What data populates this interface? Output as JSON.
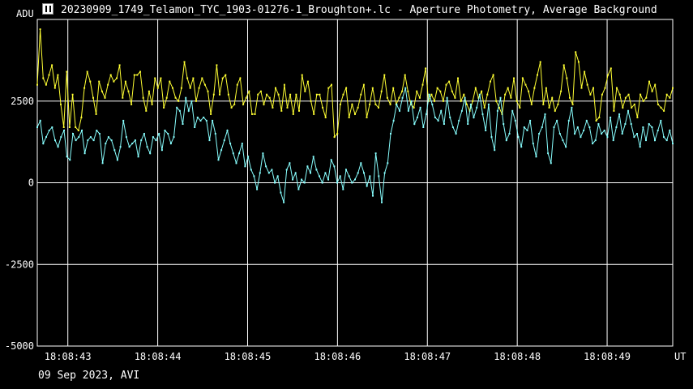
{
  "window": {
    "title": "20230909_1749_Telamon_TYC_1903-01276-1_Broughton+.lc - Aperture Photometry, Average Background",
    "icon": "app-icon"
  },
  "footer": {
    "date_label": "09 Sep 2023, AVI"
  },
  "colors": {
    "background": "#000000",
    "grid": "#ffffff",
    "series1": "#ffff33",
    "series2": "#88ffff"
  },
  "chart_data": {
    "type": "line",
    "title": "20230909_1749_Telamon_TYC_1903-01276-1_Broughton+.lc - Aperture Photometry, Average Background",
    "ylabel": "ADU",
    "xlabel": "UT",
    "ylim": [
      -5000,
      5000
    ],
    "y_ticks": [
      2500,
      0,
      -2500,
      -5000
    ],
    "y_tick_labels": [
      "2500",
      "0",
      "-2500",
      "-5000"
    ],
    "x_ticks": [
      "18:08:43",
      "18:08:44",
      "18:08:45",
      "18:08:46",
      "18:08:47",
      "18:08:48",
      "18:08:49"
    ],
    "x_range_seconds": [
      42.66,
      49.73
    ],
    "grid": true,
    "series": [
      {
        "color": "#ffff33",
        "values": [
          3000,
          4700,
          3200,
          3000,
          3300,
          3600,
          2900,
          3300,
          2400,
          1700,
          3400,
          1700,
          2700,
          1700,
          1600,
          2000,
          2900,
          3400,
          3100,
          2600,
          2100,
          3100,
          2800,
          2600,
          3000,
          3300,
          3100,
          3200,
          3600,
          2600,
          3100,
          2800,
          2400,
          3300,
          3300,
          3400,
          2600,
          2200,
          2800,
          2400,
          3200,
          2900,
          3200,
          2300,
          2600,
          3100,
          2900,
          2600,
          2500,
          2900,
          3700,
          3200,
          2900,
          3200,
          2500,
          2900,
          3200,
          3000,
          2800,
          2100,
          2700,
          3600,
          2700,
          3200,
          3300,
          2700,
          2300,
          2400,
          3000,
          3200,
          2400,
          2600,
          2800,
          2100,
          2100,
          2700,
          2800,
          2400,
          2700,
          2600,
          2300,
          2900,
          2700,
          2200,
          3000,
          2300,
          2700,
          2100,
          2700,
          2200,
          3300,
          2800,
          3100,
          2500,
          2100,
          2700,
          2700,
          2300,
          2000,
          2900,
          3000,
          1400,
          1500,
          2400,
          2700,
          2900,
          2000,
          2400,
          2100,
          2300,
          2700,
          3000,
          2000,
          2400,
          2900,
          2400,
          2300,
          2800,
          3300,
          2600,
          2400,
          2900,
          2400,
          2600,
          2800,
          3300,
          2800,
          2400,
          2300,
          2800,
          2600,
          3000,
          3500,
          2500,
          2700,
          2500,
          2900,
          2800,
          2500,
          3000,
          3100,
          2800,
          2600,
          3200,
          2500,
          2700,
          2400,
          2200,
          2500,
          2900,
          2600,
          2800,
          2300,
          2700,
          3100,
          3300,
          2500,
          2300,
          2100,
          2700,
          2900,
          2600,
          3200,
          2500,
          2300,
          3200,
          3000,
          2800,
          2400,
          2900,
          3300,
          3700,
          2400,
          2900,
          2300,
          2600,
          2200,
          2400,
          2800,
          3600,
          3200,
          2600,
          2400,
          4000,
          3700,
          2900,
          3400,
          3000,
          2700,
          2900,
          1900,
          2000,
          2700,
          2900,
          3300,
          3500,
          2200,
          2900,
          2700,
          2300,
          2600,
          2700,
          2300,
          2400,
          2000,
          2700,
          2500,
          2600,
          3100,
          2800,
          3000,
          2400,
          2300,
          2200,
          2700,
          2600,
          2900
        ]
      },
      {
        "color": "#88ffff",
        "values": [
          1700,
          1900,
          1200,
          1400,
          1600,
          1700,
          1300,
          1100,
          1400,
          1600,
          800,
          700,
          1500,
          1300,
          1400,
          1600,
          900,
          1300,
          1400,
          1300,
          1600,
          1500,
          600,
          1200,
          1400,
          1300,
          1000,
          700,
          1100,
          1900,
          1400,
          1100,
          1200,
          1300,
          800,
          1300,
          1500,
          1100,
          900,
          1400,
          1300,
          1500,
          1000,
          1600,
          1500,
          1200,
          1400,
          2300,
          2200,
          1800,
          2600,
          2200,
          2500,
          1700,
          2000,
          1900,
          2000,
          1900,
          1300,
          1900,
          1500,
          700,
          1000,
          1300,
          1600,
          1200,
          900,
          600,
          900,
          1200,
          500,
          800,
          400,
          200,
          -200,
          300,
          900,
          500,
          300,
          400,
          0,
          200,
          -300,
          -600,
          400,
          600,
          100,
          300,
          -200,
          100,
          0,
          500,
          300,
          800,
          400,
          200,
          0,
          300,
          100,
          700,
          500,
          0,
          200,
          -200,
          400,
          200,
          0,
          100,
          300,
          600,
          300,
          -100,
          200,
          -400,
          900,
          200,
          -600,
          300,
          600,
          1500,
          1900,
          2400,
          2200,
          2600,
          2900,
          2200,
          2500,
          1800,
          2000,
          2300,
          1700,
          2100,
          2700,
          2400,
          2000,
          1900,
          2200,
          1800,
          2600,
          2000,
          1700,
          1500,
          1900,
          2200,
          2600,
          1800,
          2400,
          2000,
          2300,
          2700,
          2100,
          1600,
          2400,
          1400,
          1000,
          2200,
          2600,
          1800,
          1300,
          1500,
          2200,
          1900,
          1400,
          1100,
          1700,
          1600,
          1900,
          1200,
          800,
          1500,
          1700,
          2100,
          900,
          600,
          1700,
          1900,
          1500,
          1300,
          1100,
          1900,
          2300,
          1500,
          1700,
          1400,
          1600,
          1900,
          1700,
          1200,
          1300,
          1800,
          1500,
          1600,
          1400,
          2000,
          1300,
          1700,
          2100,
          1500,
          1800,
          2200,
          1800,
          1400,
          1500,
          1100,
          1700,
          1300,
          1800,
          1700,
          1300,
          1600,
          1900,
          1400,
          1300,
          1600,
          1200
        ]
      }
    ]
  }
}
